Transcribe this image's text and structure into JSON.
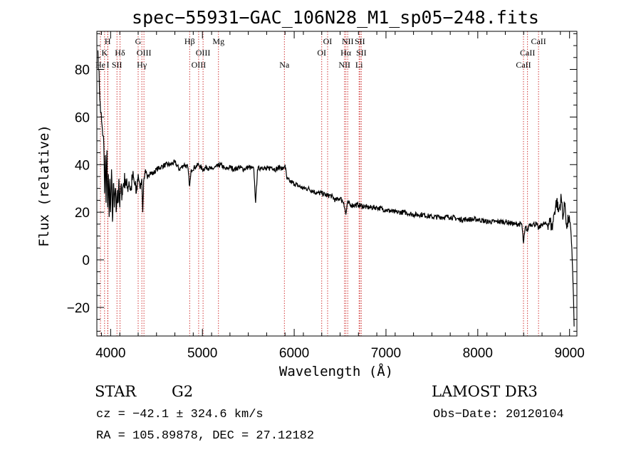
{
  "chart_data": {
    "type": "line",
    "title": "spec−55931−GAC_106N28_M1_sp05−248.fits",
    "xlabel": "Wavelength (Å)",
    "ylabel": "Flux (relative)",
    "xlim": [
      3850,
      9080
    ],
    "ylim": [
      -32,
      96
    ],
    "xticks": [
      4000,
      5000,
      6000,
      7000,
      8000,
      9000
    ],
    "yticks": [
      -20,
      0,
      20,
      40,
      60,
      80
    ],
    "xtick_labels": [
      "4000",
      "5000",
      "6000",
      "7000",
      "8000",
      "9000"
    ],
    "ytick_labels": [
      "−20",
      "0",
      "20",
      "40",
      "60",
      "80"
    ],
    "series": [
      {
        "name": "flux",
        "x": [
          3862,
          3870,
          3878,
          3886,
          3894,
          3902,
          3910,
          3918,
          3926,
          3934,
          3942,
          3950,
          3960,
          3968,
          3976,
          3984,
          3992,
          4000,
          4010,
          4020,
          4030,
          4040,
          4050,
          4060,
          4070,
          4080,
          4090,
          4100,
          4110,
          4125,
          4140,
          4160,
          4180,
          4200,
          4220,
          4240,
          4260,
          4280,
          4300,
          4320,
          4340,
          4350,
          4360,
          4380,
          4400,
          4430,
          4460,
          4500,
          4550,
          4600,
          4650,
          4700,
          4750,
          4800,
          4840,
          4861,
          4880,
          4920,
          4960,
          5000,
          5050,
          5100,
          5150,
          5200,
          5250,
          5300,
          5350,
          5400,
          5450,
          5500,
          5560,
          5580,
          5600,
          5650,
          5700,
          5750,
          5800,
          5850,
          5880,
          5900,
          5920,
          5950,
          6000,
          6050,
          6100,
          6150,
          6200,
          6250,
          6300,
          6350,
          6400,
          6450,
          6500,
          6540,
          6563,
          6580,
          6620,
          6700,
          6800,
          6900,
          7000,
          7100,
          7200,
          7300,
          7400,
          7500,
          7600,
          7700,
          7800,
          7900,
          8000,
          8100,
          8200,
          8300,
          8400,
          8480,
          8498,
          8520,
          8542,
          8560,
          8600,
          8640,
          8662,
          8700,
          8750,
          8790,
          8810,
          8830,
          8860,
          8880,
          8910,
          8930,
          8950,
          8970,
          8990,
          9010,
          9025,
          9040,
          9050
        ],
        "y": [
          88,
          80,
          72,
          66,
          62,
          58,
          55,
          52,
          48,
          28,
          44,
          24,
          46,
          22,
          36,
          18,
          34,
          20,
          38,
          16,
          32,
          22,
          30,
          20,
          28,
          24,
          34,
          22,
          30,
          28,
          32,
          34,
          30,
          33,
          29,
          35,
          32,
          28,
          36,
          30,
          34,
          20,
          33,
          38,
          34,
          37,
          36,
          38,
          39,
          40,
          40,
          41,
          38,
          40,
          39,
          31,
          38,
          39,
          40,
          38,
          39,
          38,
          39,
          40,
          38,
          39,
          38,
          39,
          38,
          39,
          38,
          24,
          38,
          39,
          38,
          39,
          38,
          39,
          38,
          40,
          34,
          33,
          32,
          31,
          30,
          30,
          29,
          28,
          28,
          27,
          27,
          25,
          26,
          24,
          19,
          24,
          23,
          23,
          22,
          22,
          21,
          20,
          20,
          19,
          19,
          18,
          18,
          18,
          17,
          17,
          17,
          16,
          16,
          16,
          15,
          15,
          7,
          14,
          12,
          15,
          15,
          15,
          13,
          15,
          15,
          16,
          13,
          19,
          25,
          20,
          26,
          18,
          24,
          13,
          18,
          14,
          5,
          -12,
          -28
        ]
      }
    ],
    "spectral_lines": [
      {
        "wl": 3889,
        "name": "He",
        "row": 3
      },
      {
        "wl": 3934,
        "name": "K",
        "row": 2
      },
      {
        "wl": 3968,
        "name": "H",
        "row": 1
      },
      {
        "wl": 3970,
        "name": "I",
        "row": 3
      },
      {
        "wl": 4069,
        "name": "SII",
        "row": 3
      },
      {
        "wl": 4102,
        "name": "Hδ",
        "row": 2
      },
      {
        "wl": 4300,
        "name": "G",
        "row": 1
      },
      {
        "wl": 4340,
        "name": "Hγ",
        "row": 3
      },
      {
        "wl": 4363,
        "name": "OIII",
        "row": 2
      },
      {
        "wl": 4861,
        "name": "Hβ",
        "row": 1
      },
      {
        "wl": 4959,
        "name": "OIII",
        "row": 3
      },
      {
        "wl": 5007,
        "name": "OIII",
        "row": 2
      },
      {
        "wl": 5175,
        "name": "Mg",
        "row": 1
      },
      {
        "wl": 5893,
        "name": "Na",
        "row": 3
      },
      {
        "wl": 6300,
        "name": "OI",
        "row": 2
      },
      {
        "wl": 6364,
        "name": "OI",
        "row": 1
      },
      {
        "wl": 6548,
        "name": "NII",
        "row": 3
      },
      {
        "wl": 6563,
        "name": "Hα",
        "row": 2
      },
      {
        "wl": 6583,
        "name": "NII",
        "row": 1
      },
      {
        "wl": 6707,
        "name": "Li",
        "row": 3
      },
      {
        "wl": 6716,
        "name": "SII",
        "row": 1
      },
      {
        "wl": 6731,
        "name": "SII",
        "row": 2
      },
      {
        "wl": 8498,
        "name": "CaII",
        "row": 3
      },
      {
        "wl": 8542,
        "name": "CaII",
        "row": 2
      },
      {
        "wl": 8662,
        "name": "CaII",
        "row": 1
      }
    ]
  },
  "info": {
    "class": "STAR",
    "subclass": "G2",
    "survey": "LAMOST DR3",
    "cz": "cz = −42.1 ± 324.6 km/s",
    "obs_date": "Obs−Date: 20120104",
    "coords": "RA = 105.89878, DEC =  27.12182"
  },
  "colors": {
    "line_markers": "#cc2222",
    "spectrum": "#000000"
  }
}
